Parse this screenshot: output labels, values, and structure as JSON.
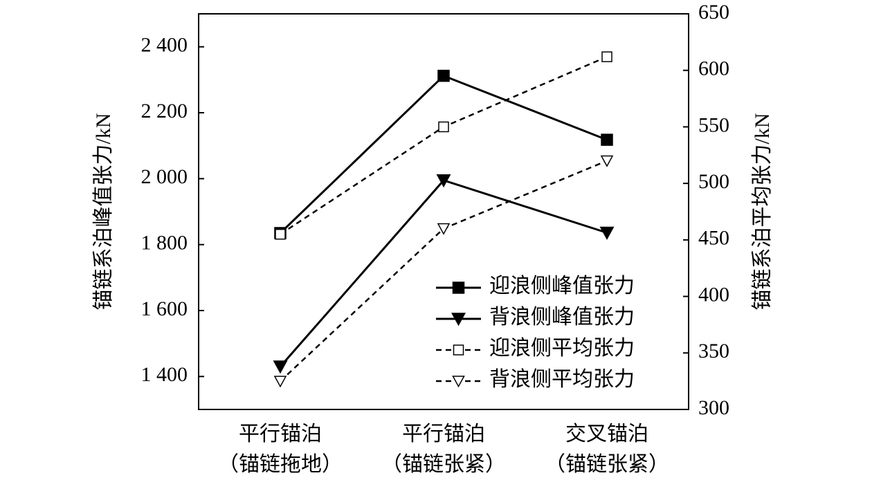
{
  "chart_data": {
    "type": "line",
    "categories": [
      [
        "平行锚泊",
        "（锚链拖地）"
      ],
      [
        "平行锚泊",
        "（锚链张紧）"
      ],
      [
        "交叉锚泊",
        "（锚链张紧）"
      ]
    ],
    "ylabel": "锚链系泊峰值张力/kN",
    "y2label": "锚链系泊平均张力/kN",
    "ylim": [
      1300,
      2500
    ],
    "yticks": [
      {
        "value": 1400,
        "label": "1 400"
      },
      {
        "value": 1600,
        "label": "1 600"
      },
      {
        "value": 1800,
        "label": "1 800"
      },
      {
        "value": 2000,
        "label": "2 000"
      },
      {
        "value": 2200,
        "label": "2 200"
      },
      {
        "value": 2400,
        "label": "2 400"
      }
    ],
    "y2lim": [
      300,
      650
    ],
    "y2ticks": [
      300,
      350,
      400,
      450,
      500,
      550,
      600,
      650
    ],
    "legend": "lower right",
    "series": [
      {
        "name": "迎浪侧峰值张力",
        "color": "#000000",
        "marker": "square",
        "filled": true,
        "dash": false,
        "values": [
          1835,
          2312,
          2118
        ]
      },
      {
        "name": "背浪侧峰值张力",
        "color": "#000000",
        "marker": "triangle-down",
        "filled": true,
        "dash": false,
        "values": [
          1430,
          1995,
          1836
        ]
      },
      {
        "name": "迎浪侧平均张力",
        "color": "#000000",
        "marker": "square",
        "filled": false,
        "dash": true,
        "axis": "y2",
        "values": [
          455,
          550,
          612
        ]
      },
      {
        "name": "背浪侧平均张力",
        "color": "#000000",
        "marker": "triangle-down",
        "filled": false,
        "dash": true,
        "axis": "y2",
        "values": [
          325,
          460,
          520
        ]
      }
    ]
  }
}
